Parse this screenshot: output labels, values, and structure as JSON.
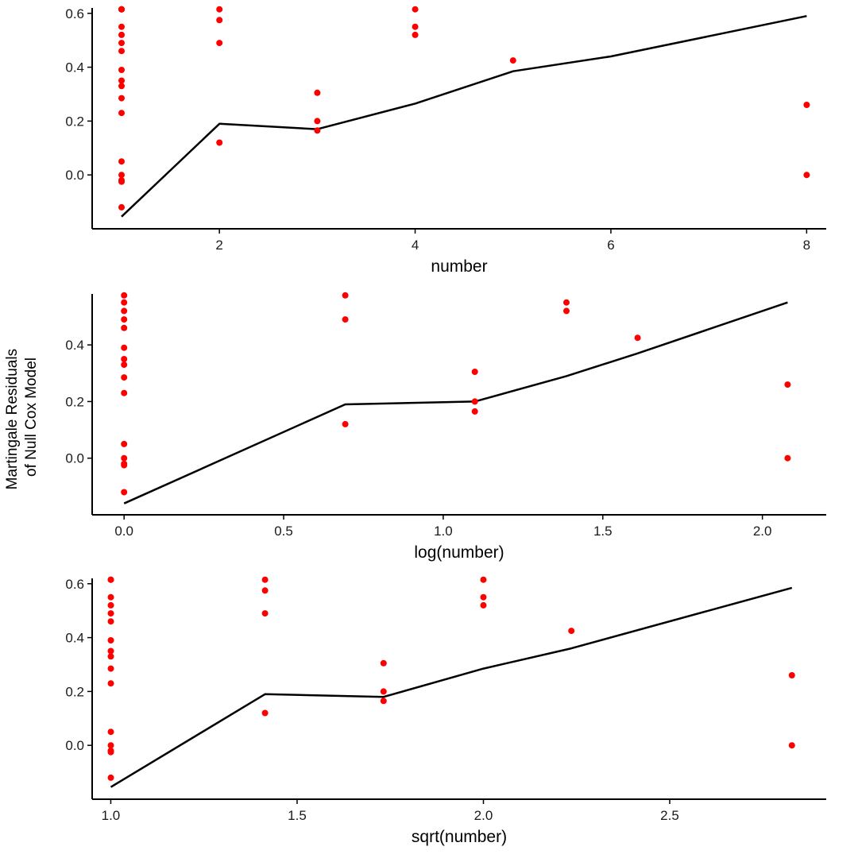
{
  "figure": {
    "y_label_lines": [
      "Martingale Residuals",
      "of Null Cox Model"
    ],
    "point_color": "#ff0000",
    "line_color": "#000000",
    "axis_color": "#000000"
  },
  "chart_data": [
    {
      "type": "scatter",
      "xlabel": "number",
      "ylabel": "Martingale Residuals of Null Cox Model",
      "xlim": [
        0.7,
        8.2
      ],
      "ylim": [
        -0.2,
        0.62
      ],
      "xticks": [
        2,
        4,
        6,
        8
      ],
      "xtick_labels": [
        "2",
        "4",
        "6",
        "8"
      ],
      "yticks": [
        0.0,
        0.2,
        0.4,
        0.6
      ],
      "ytick_labels": [
        "0.0",
        "0.2",
        "0.4",
        "0.6"
      ],
      "points": {
        "x": [
          1,
          1,
          1,
          1,
          1,
          1,
          1,
          1,
          1,
          1,
          1,
          1,
          1,
          1,
          1,
          1,
          1,
          1,
          2,
          2,
          2,
          2,
          3,
          3,
          3,
          4,
          4,
          4,
          5,
          8,
          8
        ],
        "y": [
          0.615,
          0.55,
          0.52,
          0.49,
          0.46,
          0.39,
          0.35,
          0.33,
          0.285,
          0.23,
          0.05,
          0.0,
          -0.02,
          -0.025,
          -0.12,
          0.615,
          0.615,
          0.615,
          0.615,
          0.575,
          0.49,
          0.12,
          0.305,
          0.2,
          0.165,
          0.615,
          0.55,
          0.52,
          0.425,
          0.26,
          0.0
        ]
      },
      "smooth": {
        "x": [
          1,
          2,
          3,
          4,
          5,
          6,
          8
        ],
        "y": [
          -0.155,
          0.19,
          0.17,
          0.265,
          0.385,
          0.44,
          0.59
        ]
      }
    },
    {
      "type": "scatter",
      "xlabel": "log(number)",
      "ylabel": "Martingale Residuals of Null Cox Model",
      "xlim": [
        -0.1,
        2.2
      ],
      "ylim": [
        -0.2,
        0.58
      ],
      "xticks": [
        0.0,
        0.5,
        1.0,
        1.5,
        2.0
      ],
      "xtick_labels": [
        "0.0",
        "0.5",
        "1.0",
        "1.5",
        "2.0"
      ],
      "yticks": [
        0.0,
        0.2,
        0.4
      ],
      "ytick_labels": [
        "0.0",
        "0.2",
        "0.4"
      ],
      "points": {
        "x": [
          0,
          0,
          0,
          0,
          0,
          0,
          0,
          0,
          0,
          0,
          0,
          0,
          0,
          0,
          0,
          0.693,
          0.693,
          0.693,
          1.099,
          1.099,
          1.099,
          1.386,
          1.386,
          1.609,
          2.079,
          2.079
        ],
        "y": [
          0.55,
          0.52,
          0.49,
          0.46,
          0.39,
          0.35,
          0.33,
          0.285,
          0.23,
          0.05,
          0.0,
          -0.02,
          -0.025,
          -0.12,
          0.575,
          0.575,
          0.49,
          0.12,
          0.305,
          0.2,
          0.165,
          0.55,
          0.52,
          0.425,
          0.26,
          0.0
        ]
      },
      "smooth": {
        "x": [
          0,
          0.693,
          1.099,
          1.386,
          1.609,
          2.079
        ],
        "y": [
          -0.16,
          0.19,
          0.2,
          0.29,
          0.37,
          0.55
        ]
      }
    },
    {
      "type": "scatter",
      "xlabel": "sqrt(number)",
      "ylabel": "Martingale Residuals of Null Cox Model",
      "xlim": [
        0.95,
        2.92
      ],
      "ylim": [
        -0.2,
        0.62
      ],
      "xticks": [
        1.0,
        1.5,
        2.0,
        2.5
      ],
      "xtick_labels": [
        "1.0",
        "1.5",
        "2.0",
        "2.5"
      ],
      "yticks": [
        0.0,
        0.2,
        0.4,
        0.6
      ],
      "ytick_labels": [
        "0.0",
        "0.2",
        "0.4",
        "0.6"
      ],
      "points": {
        "x": [
          1,
          1,
          1,
          1,
          1,
          1,
          1,
          1,
          1,
          1,
          1,
          1,
          1,
          1,
          1,
          1,
          1.414,
          1.414,
          1.414,
          1.414,
          1.732,
          1.732,
          1.732,
          2,
          2,
          2,
          2.236,
          2.828,
          2.828
        ],
        "y": [
          0.615,
          0.55,
          0.52,
          0.49,
          0.46,
          0.39,
          0.35,
          0.33,
          0.285,
          0.23,
          0.05,
          0.0,
          -0.02,
          -0.025,
          -0.12,
          0.615,
          0.615,
          0.575,
          0.49,
          0.12,
          0.305,
          0.2,
          0.165,
          0.615,
          0.55,
          0.52,
          0.425,
          0.26,
          0.0
        ]
      },
      "smooth": {
        "x": [
          1,
          1.414,
          1.732,
          2,
          2.236,
          2.828
        ],
        "y": [
          -0.155,
          0.19,
          0.18,
          0.285,
          0.36,
          0.585
        ]
      }
    }
  ]
}
